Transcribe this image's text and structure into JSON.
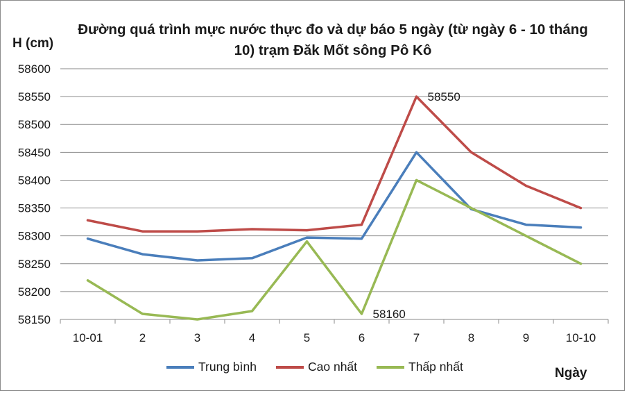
{
  "chart_data": {
    "type": "line",
    "title": "Đường quá trình mực nước thực đo và dự báo 5 ngày (từ ngày 6 - 10 tháng 10) trạm Đăk Mốt sông Pô Kô",
    "ylabel": "H (cm)",
    "xlabel": "Ngày",
    "categories": [
      "10-01",
      "2",
      "3",
      "4",
      "5",
      "6",
      "7",
      "8",
      "9",
      "10-10"
    ],
    "ylim": [
      58150,
      58600
    ],
    "yticks": [
      58150,
      58200,
      58250,
      58300,
      58350,
      58400,
      58450,
      58500,
      58550,
      58600
    ],
    "grid": true,
    "legend_position": "bottom",
    "series": [
      {
        "name": "Trung bình",
        "color": "#4a7ebb",
        "values": [
          58295,
          58267,
          58256,
          58260,
          58297,
          58295,
          58450,
          58348,
          58320,
          58315
        ]
      },
      {
        "name": "Cao nhất",
        "color": "#be4b48",
        "values": [
          58328,
          58308,
          58308,
          58312,
          58310,
          58320,
          58550,
          58450,
          58390,
          58350
        ]
      },
      {
        "name": "Thấp nhất",
        "color": "#98b954",
        "values": [
          58220,
          58160,
          58150,
          58165,
          58290,
          58160,
          58400,
          58350,
          58300,
          58250
        ]
      }
    ],
    "annotations": [
      {
        "text": "58550",
        "series": 1,
        "index": 6
      },
      {
        "text": "58160",
        "series": 2,
        "index": 5
      }
    ]
  }
}
